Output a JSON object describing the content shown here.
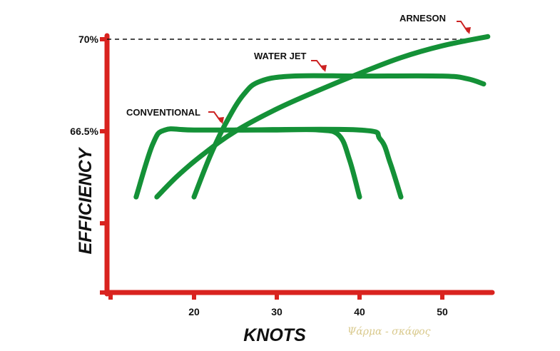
{
  "chart_data": {
    "type": "line",
    "xlabel": "KNOTS",
    "ylabel": "EFFICIENCY",
    "x_ticks": [
      "20",
      "30",
      "40",
      "50"
    ],
    "y_ticks": [
      "66.5%",
      "70%"
    ],
    "reference_line": {
      "label": "70%",
      "style": "dashed"
    },
    "grid": false,
    "series": [
      {
        "name": "CONVENTIONAL",
        "color": "#149137",
        "points": [
          [
            13,
            64.0
          ],
          [
            15,
            66.0
          ],
          [
            16.5,
            66.55
          ],
          [
            20,
            66.55
          ],
          [
            30,
            66.55
          ],
          [
            35,
            66.55
          ],
          [
            37.5,
            66.35
          ],
          [
            38.8,
            65.4
          ],
          [
            40,
            64.0
          ]
        ]
      },
      {
        "name": "WATER JET",
        "color": "#149137",
        "points": [
          [
            20,
            64.0
          ],
          [
            22,
            65.6
          ],
          [
            24,
            66.9
          ],
          [
            26,
            67.9
          ],
          [
            28,
            68.4
          ],
          [
            32,
            68.6
          ],
          [
            40,
            68.6
          ],
          [
            50,
            68.6
          ],
          [
            53,
            68.5
          ],
          [
            55,
            68.3
          ]
        ]
      },
      {
        "name": "ARNESON",
        "color": "#149137",
        "points": [
          [
            15.5,
            64.0
          ],
          [
            18,
            64.8
          ],
          [
            21,
            65.6
          ],
          [
            25,
            66.5
          ],
          [
            30,
            67.35
          ],
          [
            35,
            68.05
          ],
          [
            40,
            68.7
          ],
          [
            45,
            69.3
          ],
          [
            50,
            69.75
          ],
          [
            55.5,
            70.1
          ]
        ]
      },
      {
        "name": "",
        "color": "#149137",
        "points": [
          [
            25,
            66.55
          ],
          [
            40,
            66.55
          ],
          [
            42.5,
            66.2
          ],
          [
            43.7,
            65.3
          ],
          [
            45,
            64.0
          ]
        ]
      }
    ],
    "annotation_arrows_color": "#cc2222",
    "axis_color": "#d9231f"
  },
  "watermark": "Ψάρμα - σκάφος"
}
